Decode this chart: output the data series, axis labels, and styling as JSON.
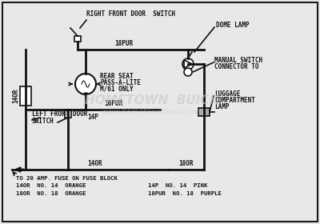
{
  "bg_color": "#e8e8e8",
  "border_color": "#1a1a1a",
  "line_color": "#111111",
  "watermark_color": "#c8c8c8",
  "lw_main": 2.0,
  "lw_thin": 1.2,
  "figsize": [
    4.0,
    2.8
  ],
  "dpi": 100,
  "xlim": [
    0,
    400
  ],
  "ylim": [
    0,
    280
  ],
  "labels": {
    "right_front_door": "RIGHT FRONT DOOR  SWITCH",
    "dome_lamp": "DOME LAMP",
    "rear_seat_line1": "REAR SEAT",
    "rear_seat_line2": "PASS-A-LITE",
    "rear_seat_line3": "M/61 ONLY",
    "left_front_door_line1": "LEFT FRONT DOOR",
    "left_front_door_line2": "SWITCH",
    "manual_switch_line1": "MANUAL SWITCH",
    "manual_switch_line2": "CONNECTOR TO",
    "luggage_line1": "LUGGAGE",
    "luggage_line2": "COMPARTMENT",
    "luggage_line3": "LAMP",
    "wire_18pur": "18PUR",
    "wire_16pur": "16PUR",
    "wire_14p": "14P",
    "wire_14or_bottom": "14OR",
    "wire_18or_bottom": "18OR",
    "wire_14or_left": "14OR",
    "fuse_text": "TO 20 AMP. FUSE ON FUSE BLOCK",
    "legend1a": "14OR  NO. 14  ORANGE",
    "legend1b": "14P  NO. 14  PINK",
    "legend2a": "18OR  NO. 18  ORANGE",
    "legend2b": "18PUR  NO. 18  PURPLE"
  }
}
